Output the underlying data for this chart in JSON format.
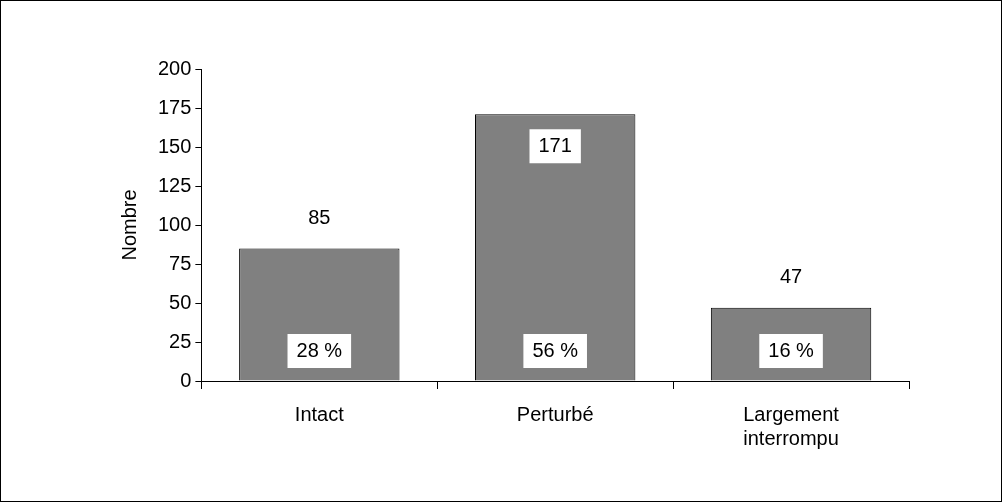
{
  "chart_data": {
    "type": "bar",
    "ylabel": "Nombre",
    "categories": [
      "Intact",
      "Perturbé",
      "Largement interrompu"
    ],
    "values": [
      85,
      171,
      47
    ],
    "color": "#808080",
    "ylim": [
      0,
      200
    ],
    "yticks": [
      0,
      25,
      50,
      75,
      100,
      125,
      150,
      175,
      200
    ],
    "grid": false,
    "legend": false,
    "data_labels": true,
    "annotations": [
      "28 %",
      "56 %",
      "16 %"
    ]
  }
}
